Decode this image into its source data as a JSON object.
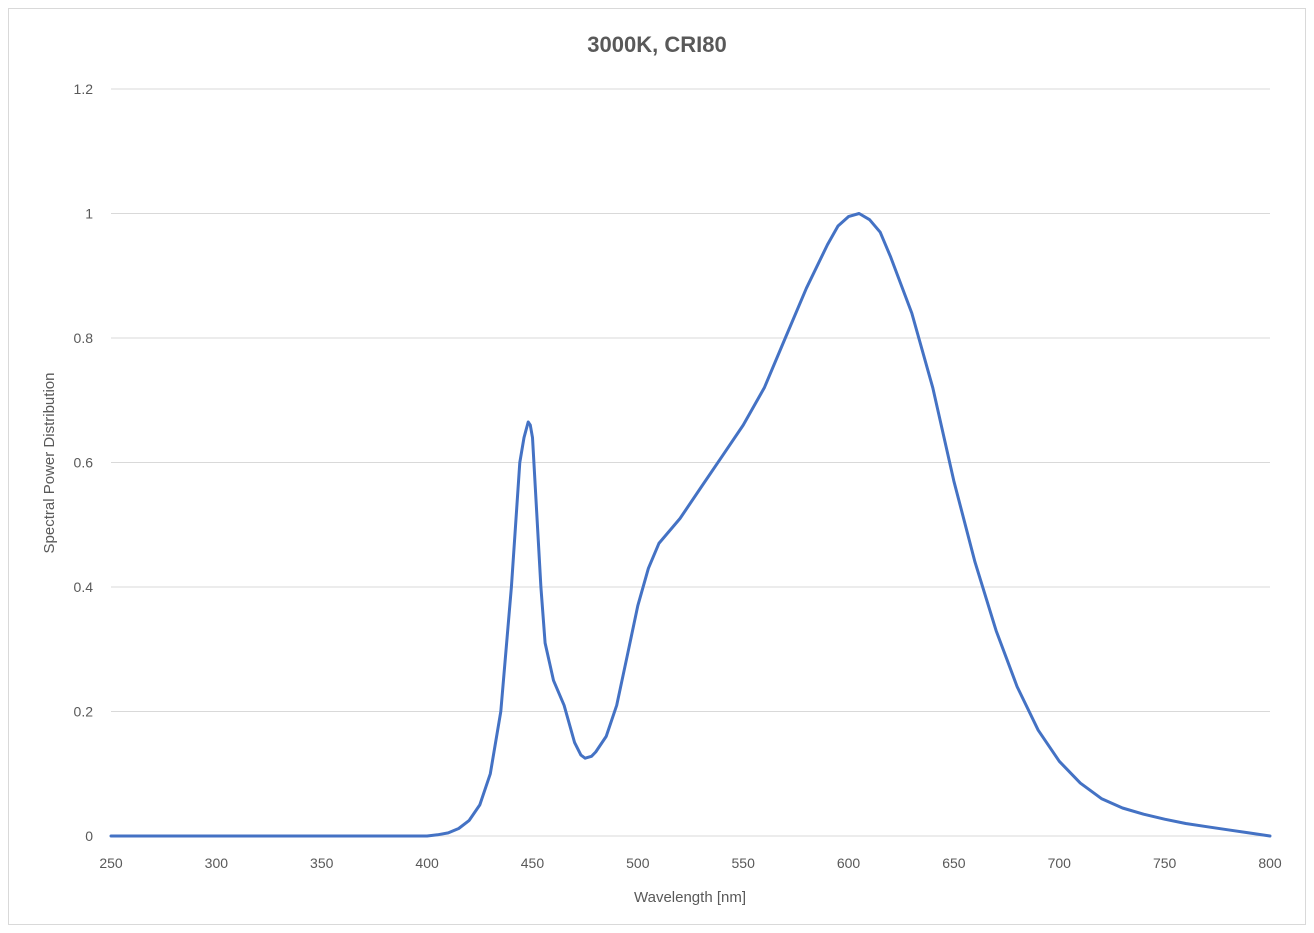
{
  "chart_data": {
    "type": "line",
    "title": "3000K, CRI80",
    "xlabel": "Wavelength [nm]",
    "ylabel": "Spectral Power Distribution",
    "xlim": [
      250,
      800
    ],
    "ylim": [
      0,
      1.2
    ],
    "x_ticks": [
      250,
      300,
      350,
      400,
      450,
      500,
      550,
      600,
      650,
      700,
      750,
      800
    ],
    "y_ticks": [
      0,
      0.2,
      0.4,
      0.6,
      0.8,
      1,
      1.2
    ],
    "y_tick_labels": [
      "0",
      "0.2",
      "0.4",
      "0.6",
      "0.8",
      "1",
      "1.2"
    ],
    "grid": "horizontal",
    "legend": "none",
    "series_color": "#4472c4",
    "series": [
      {
        "x": [
          250,
          300,
          350,
          390,
          400,
          405,
          410,
          415,
          420,
          425,
          430,
          435,
          440,
          442,
          444,
          446,
          448,
          449,
          450,
          452,
          454,
          456,
          458,
          460,
          465,
          470,
          473,
          475,
          478,
          480,
          485,
          490,
          495,
          500,
          505,
          510,
          515,
          520,
          530,
          540,
          550,
          560,
          570,
          580,
          590,
          595,
          600,
          605,
          610,
          615,
          620,
          630,
          640,
          650,
          660,
          670,
          680,
          690,
          700,
          710,
          720,
          730,
          740,
          750,
          760,
          770,
          780,
          790,
          800
        ],
        "y": [
          0,
          0,
          0,
          0,
          0,
          0.002,
          0.005,
          0.012,
          0.025,
          0.05,
          0.1,
          0.2,
          0.4,
          0.5,
          0.6,
          0.64,
          0.665,
          0.66,
          0.64,
          0.52,
          0.4,
          0.31,
          0.28,
          0.25,
          0.21,
          0.15,
          0.13,
          0.125,
          0.128,
          0.135,
          0.16,
          0.21,
          0.29,
          0.37,
          0.43,
          0.47,
          0.49,
          0.51,
          0.56,
          0.61,
          0.66,
          0.72,
          0.8,
          0.88,
          0.95,
          0.98,
          0.995,
          1.0,
          0.99,
          0.97,
          0.93,
          0.84,
          0.72,
          0.57,
          0.44,
          0.33,
          0.24,
          0.17,
          0.12,
          0.085,
          0.06,
          0.045,
          0.035,
          0.027,
          0.02,
          0.015,
          0.01,
          0.005,
          0
        ]
      }
    ]
  }
}
